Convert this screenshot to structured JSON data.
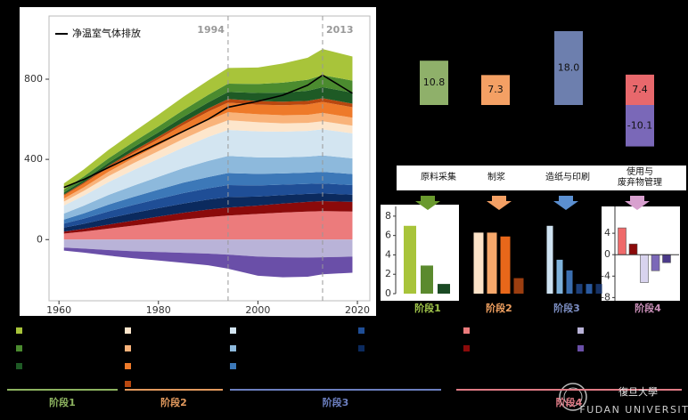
{
  "chart_data": [
    {
      "type": "area",
      "stacked": true,
      "x": [
        1961,
        1965,
        1970,
        1975,
        1980,
        1985,
        1990,
        1994,
        2000,
        2005,
        2010,
        2013,
        2019
      ],
      "xlim": [
        1958,
        2022.5
      ],
      "xticks": [
        1960,
        1980,
        2000,
        2020
      ],
      "ylim": [
        -305,
        1115
      ],
      "yticks": [
        0,
        400,
        800
      ],
      "series": [
        {
          "color": "#ec7b7c",
          "values": [
            30,
            40,
            55,
            70,
            85,
            100,
            112,
            120,
            128,
            135,
            140,
            142,
            140
          ]
        },
        {
          "color": "#8b0a0a",
          "values": [
            10,
            14,
            20,
            25,
            30,
            34,
            38,
            40,
            42,
            45,
            48,
            50,
            48
          ]
        },
        {
          "color": "#0b2a5e",
          "values": [
            20,
            25,
            32,
            38,
            42,
            46,
            50,
            52,
            45,
            42,
            40,
            38,
            36
          ]
        },
        {
          "color": "#1f4e96",
          "values": [
            20,
            26,
            34,
            40,
            46,
            52,
            56,
            60,
            55,
            52,
            50,
            50,
            48
          ]
        },
        {
          "color": "#3c78b8",
          "values": [
            20,
            26,
            34,
            40,
            46,
            52,
            56,
            60,
            58,
            56,
            56,
            58,
            55
          ]
        },
        {
          "color": "#8db9dc",
          "values": [
            30,
            38,
            48,
            56,
            64,
            72,
            80,
            85,
            82,
            80,
            80,
            82,
            78
          ]
        },
        {
          "color": "#d3e5f1",
          "values": [
            40,
            50,
            64,
            78,
            90,
            104,
            120,
            130,
            130,
            128,
            128,
            130,
            125
          ]
        },
        {
          "color": "#fde6cc",
          "values": [
            20,
            24,
            30,
            34,
            38,
            42,
            46,
            48,
            45,
            42,
            40,
            40,
            38
          ]
        },
        {
          "color": "#f9b37a",
          "values": [
            15,
            18,
            22,
            26,
            30,
            34,
            38,
            40,
            40,
            40,
            40,
            42,
            40
          ]
        },
        {
          "color": "#ee7a2a",
          "values": [
            15,
            18,
            22,
            26,
            30,
            36,
            42,
            48,
            48,
            50,
            52,
            55,
            52
          ]
        },
        {
          "color": "#b8470f",
          "values": [
            5,
            6,
            8,
            10,
            12,
            14,
            16,
            18,
            18,
            18,
            18,
            18,
            18
          ]
        },
        {
          "color": "#1e5a25",
          "values": [
            10,
            12,
            15,
            18,
            22,
            26,
            30,
            35,
            40,
            45,
            50,
            55,
            55
          ]
        },
        {
          "color": "#4b8b2f",
          "values": [
            15,
            18,
            22,
            26,
            30,
            34,
            38,
            42,
            45,
            50,
            55,
            60,
            60
          ]
        },
        {
          "color": "#a8c43a",
          "values": [
            30,
            35,
            42,
            50,
            58,
            66,
            72,
            78,
            82,
            95,
            110,
            130,
            120
          ]
        },
        {
          "color": "#b9b3d8",
          "values": [
            -40,
            -45,
            -52,
            -58,
            -62,
            -66,
            -70,
            -75,
            -85,
            -88,
            -90,
            -88,
            -85
          ]
        },
        {
          "color": "#6a4fa8",
          "values": [
            -15,
            -20,
            -28,
            -35,
            -42,
            -50,
            -58,
            -70,
            -95,
            -100,
            -95,
            -85,
            -80
          ]
        }
      ],
      "net": {
        "name": "净温室气体排放",
        "color": "#000000",
        "values": [
          260,
          300,
          360,
          420,
          480,
          540,
          600,
          660,
          690,
          720,
          770,
          820,
          730
        ]
      },
      "annotations": [
        {
          "text": "1994",
          "x": 1994
        },
        {
          "text": "2013",
          "x": 2013
        }
      ]
    },
    {
      "type": "bar",
      "categories": [
        "原料采集",
        "制浆",
        "造纸与印刷",
        "使用与\n废弃物管理"
      ],
      "series": [
        {
          "colors": [
            "#8fb06a",
            "#f4a064",
            "#6d7fae",
            "#e8686c"
          ],
          "values": [
            10.8,
            7.3,
            18.0,
            7.4
          ],
          "value_labels": [
            "10.8",
            "7.3",
            "18.0",
            "7.4"
          ]
        },
        {
          "colors": [
            null,
            null,
            null,
            "#7a68b8"
          ],
          "values": [
            null,
            null,
            null,
            -10.1
          ],
          "value_labels": [
            null,
            null,
            null,
            "-10.1"
          ]
        }
      ]
    },
    {
      "type": "bar",
      "title": "阶段1",
      "title_color": "#9fc44a",
      "values": [
        7.0,
        2.9,
        1.0
      ],
      "colors": [
        "#a8c43a",
        "#5b8a2e",
        "#1a4a24"
      ],
      "ylim": [
        0,
        9
      ],
      "yticks": [
        0,
        2,
        4,
        6,
        8
      ]
    },
    {
      "type": "bar",
      "title": "阶段2",
      "title_color": "#f0a060",
      "values": [
        6.3,
        6.3,
        5.9,
        1.6
      ],
      "colors": [
        "#fde3c8",
        "#f7a86b",
        "#e8671a",
        "#9c3e10"
      ]
    },
    {
      "type": "bar",
      "title": "阶段3",
      "title_color": "#7d8fc4",
      "values": [
        7.0,
        3.5,
        2.4,
        1.0,
        1.0,
        1.0
      ],
      "colors": [
        "#cfe3f2",
        "#7fb3dc",
        "#3b6fb0",
        "#1c3f7a",
        "#2a5aa0",
        "#163266"
      ]
    },
    {
      "type": "bar",
      "title": "阶段4",
      "title_color": "#c98fb8",
      "values": [
        5.0,
        2.0,
        -5.2,
        -3.0,
        -1.5
      ],
      "colors": [
        "#ef6a6a",
        "#8b0a0a",
        "#d8d3ee",
        "#7b68b8",
        "#4b3a8a"
      ],
      "ylim": [
        -8.6,
        9
      ],
      "yticks": [
        4,
        0,
        -4,
        -8
      ]
    }
  ],
  "footer": {
    "stages": [
      {
        "label": "阶段1",
        "color": "#8db360"
      },
      {
        "label": "阶段2",
        "color": "#e39a5e"
      },
      {
        "label": "阶段3",
        "color": "#6c7fc0"
      },
      {
        "label": "阶段4",
        "color": "#e07b86"
      }
    ]
  },
  "logo": {
    "name": "復旦大學",
    "sub": "FUDAN UNIVERSITY"
  }
}
